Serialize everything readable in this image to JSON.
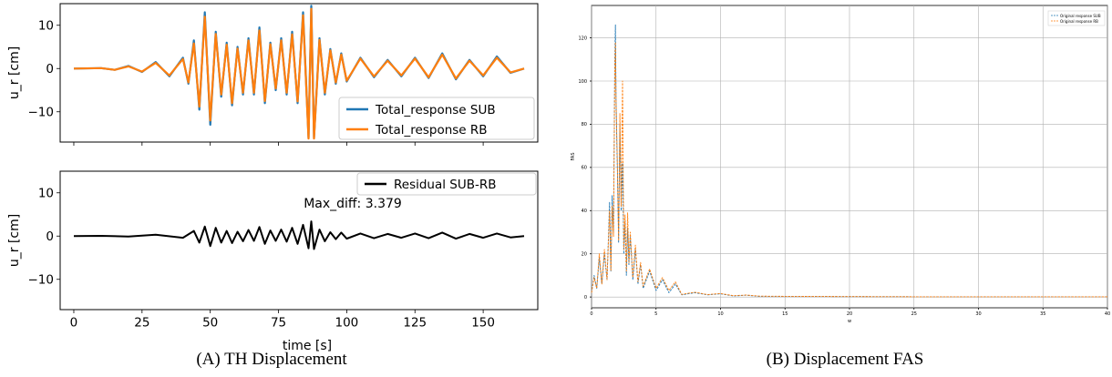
{
  "chart_data": [
    {
      "type": "line",
      "title": "",
      "xlabel": "",
      "ylabel": "u_r [cm]",
      "xlim": [
        -5,
        170
      ],
      "ylim": [
        -17,
        15
      ],
      "yticks": [
        10,
        0,
        -10
      ],
      "ytick_labels": [
        "10",
        "0",
        "−10"
      ],
      "legend": "lower-right",
      "series": [
        {
          "name": "Total_response SUB",
          "color": "#1f77b4",
          "x": [
            0,
            10,
            15,
            20,
            25,
            30,
            35,
            40,
            42,
            44,
            46,
            48,
            50,
            52,
            54,
            56,
            58,
            60,
            62,
            64,
            66,
            68,
            70,
            72,
            74,
            76,
            78,
            80,
            82,
            84,
            86,
            87,
            88,
            90,
            92,
            94,
            96,
            98,
            100,
            105,
            110,
            115,
            120,
            125,
            130,
            135,
            140,
            145,
            150,
            155,
            160,
            165
          ],
          "y": [
            0,
            0.1,
            -0.3,
            0.6,
            -0.8,
            1.5,
            -1.8,
            2.5,
            -3.5,
            6.5,
            -9.5,
            13,
            -13,
            8.5,
            -6.5,
            6,
            -8.5,
            5,
            -6,
            7,
            -6,
            9.5,
            -8,
            6,
            -5,
            7,
            -6,
            8.5,
            -8,
            13,
            -16,
            14.5,
            -16,
            7,
            -6,
            4.5,
            -3.5,
            3.5,
            -3,
            2.5,
            -2,
            2,
            -1.8,
            2.5,
            -2.2,
            3.5,
            -2.5,
            2,
            -1.8,
            2.8,
            -1,
            0
          ]
        },
        {
          "name": "Total_response RB",
          "color": "#ff7f0e",
          "x": [
            0,
            10,
            15,
            20,
            25,
            30,
            35,
            40,
            42,
            44,
            46,
            48,
            50,
            52,
            54,
            56,
            58,
            60,
            62,
            64,
            66,
            68,
            70,
            72,
            74,
            76,
            78,
            80,
            82,
            84,
            86,
            87,
            88,
            90,
            92,
            94,
            96,
            98,
            100,
            105,
            110,
            115,
            120,
            125,
            130,
            135,
            140,
            145,
            150,
            155,
            160,
            165
          ],
          "y": [
            0,
            0.1,
            -0.3,
            0.5,
            -0.7,
            1.3,
            -1.6,
            2.2,
            -3.2,
            5.8,
            -8.8,
            12,
            -12,
            8,
            -6,
            5.5,
            -8,
            4.6,
            -5.6,
            6.5,
            -5.6,
            8.8,
            -7.5,
            5.6,
            -4.6,
            6.5,
            -5.6,
            7.9,
            -7.6,
            12.3,
            -16.2,
            13.8,
            -16.2,
            6.6,
            -5.6,
            4.2,
            -3.2,
            3.2,
            -2.8,
            2.3,
            -1.8,
            1.8,
            -1.6,
            2.3,
            -2,
            3.2,
            -2.3,
            1.8,
            -1.6,
            2.5,
            -0.9,
            0
          ]
        }
      ]
    },
    {
      "type": "line",
      "title": "",
      "xlabel": "time [s]",
      "ylabel": "u_r [cm]",
      "xlim": [
        -5,
        170
      ],
      "ylim": [
        -17,
        15
      ],
      "xticks": [
        0,
        25,
        50,
        75,
        100,
        125,
        150
      ],
      "yticks": [
        10,
        0,
        -10
      ],
      "ytick_labels": [
        "10",
        "0",
        "−10"
      ],
      "legend": "top-right",
      "annotation": "Max_diff: 3.379",
      "series": [
        {
          "name": "Residual SUB-RB",
          "color": "#000000",
          "x": [
            0,
            10,
            20,
            30,
            40,
            44,
            46,
            48,
            50,
            52,
            54,
            56,
            58,
            60,
            62,
            64,
            66,
            68,
            70,
            72,
            74,
            76,
            78,
            80,
            82,
            84,
            86,
            87,
            88,
            90,
            92,
            94,
            96,
            98,
            100,
            105,
            110,
            115,
            120,
            125,
            130,
            135,
            140,
            145,
            150,
            155,
            160,
            165
          ],
          "y": [
            0,
            0.05,
            -0.1,
            0.3,
            -0.4,
            1.2,
            -1.5,
            2.2,
            -2.3,
            1.9,
            -1.5,
            1.2,
            -1.6,
            1.0,
            -1.2,
            1.4,
            -1.1,
            2.1,
            -1.8,
            1.3,
            -1.1,
            1.5,
            -1.3,
            1.9,
            -1.8,
            2.6,
            -2.8,
            3.4,
            -3.0,
            1.5,
            -1.2,
            0.9,
            -0.7,
            0.8,
            -0.6,
            0.6,
            -0.5,
            0.5,
            -0.4,
            0.6,
            -0.5,
            0.8,
            -0.6,
            0.5,
            -0.4,
            0.6,
            -0.3,
            0
          ]
        }
      ]
    },
    {
      "type": "line",
      "title": "",
      "xlabel": "w",
      "ylabel": "FAS",
      "xlim": [
        0,
        40
      ],
      "ylim": [
        -5,
        135
      ],
      "xticks": [
        0,
        5,
        10,
        15,
        20,
        25,
        30,
        35,
        40
      ],
      "yticks": [
        0,
        20,
        40,
        60,
        80,
        100,
        120
      ],
      "grid": true,
      "legend": "top-right",
      "series": [
        {
          "name": "Original response SUB",
          "color": "#1f77b4",
          "x": [
            0,
            0.2,
            0.4,
            0.6,
            0.8,
            1.0,
            1.2,
            1.4,
            1.5,
            1.6,
            1.7,
            1.8,
            1.85,
            1.9,
            2.0,
            2.1,
            2.2,
            2.3,
            2.4,
            2.5,
            2.6,
            2.7,
            2.8,
            2.9,
            3.0,
            3.2,
            3.4,
            3.6,
            3.8,
            4.0,
            4.5,
            5.0,
            5.5,
            6.0,
            6.5,
            7.0,
            8,
            9,
            10,
            11,
            12,
            13,
            15,
            20,
            25,
            30,
            35,
            40
          ],
          "y": [
            2,
            10,
            4,
            18,
            6,
            20,
            8,
            44,
            12,
            47,
            30,
            110,
            126,
            90,
            60,
            25,
            80,
            40,
            62,
            20,
            35,
            10,
            32,
            15,
            28,
            8,
            22,
            6,
            15,
            4,
            12,
            3,
            8,
            2,
            6,
            1,
            2,
            1,
            1.5,
            0.5,
            0.8,
            0.3,
            0.3,
            0.2,
            0.1,
            0.1,
            0.1,
            0.1
          ]
        },
        {
          "name": "Original response RB",
          "color": "#ff7f0e",
          "x": [
            0,
            0.2,
            0.4,
            0.6,
            0.8,
            1.0,
            1.2,
            1.4,
            1.5,
            1.6,
            1.7,
            1.8,
            1.85,
            1.9,
            2.0,
            2.1,
            2.2,
            2.3,
            2.4,
            2.5,
            2.6,
            2.7,
            2.8,
            2.9,
            3.0,
            3.2,
            3.4,
            3.6,
            3.8,
            4.0,
            4.5,
            5.0,
            5.5,
            6.0,
            6.5,
            7.0,
            8,
            9,
            10,
            11,
            12,
            13,
            15,
            20,
            25,
            30,
            35,
            40
          ],
          "y": [
            2,
            9,
            4,
            20,
            6,
            22,
            8,
            40,
            12,
            42,
            28,
            105,
            118,
            92,
            62,
            26,
            85,
            42,
            100,
            22,
            38,
            12,
            39,
            16,
            30,
            9,
            24,
            7,
            16,
            5,
            13,
            4,
            9,
            3,
            7,
            1.2,
            2.2,
            1.1,
            1.6,
            0.6,
            0.9,
            0.4,
            0.3,
            0.2,
            0.1,
            0.1,
            0.1,
            0.1
          ]
        }
      ]
    }
  ],
  "captions": {
    "a": "(A) TH Displacement",
    "b": "(B) Displacement FAS"
  }
}
